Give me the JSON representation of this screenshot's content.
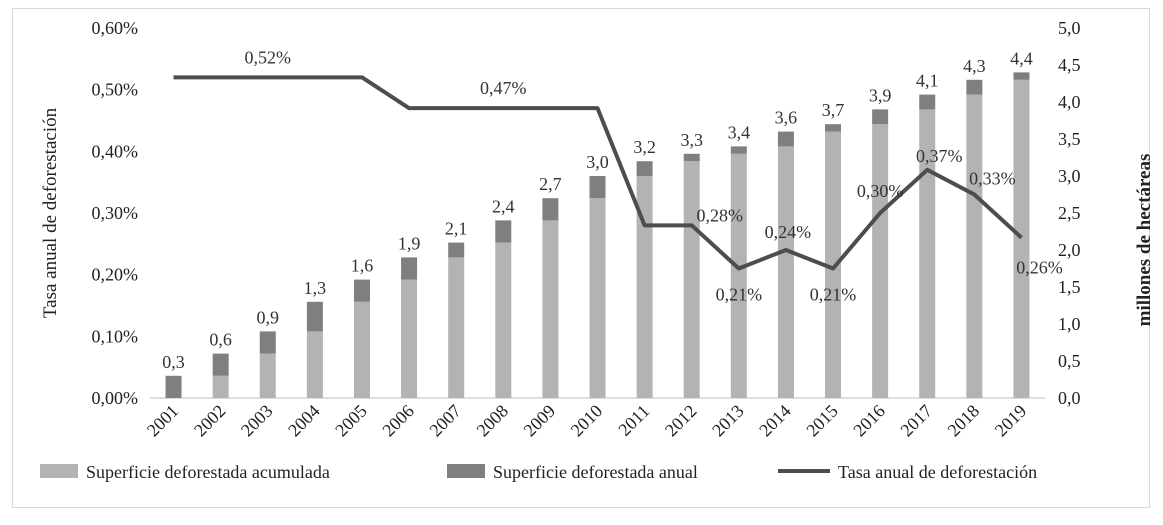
{
  "chart_data": {
    "type": "bar",
    "categories": [
      "2001",
      "2002",
      "2003",
      "2004",
      "2005",
      "2006",
      "2007",
      "2008",
      "2009",
      "2010",
      "2011",
      "2012",
      "2013",
      "2014",
      "2015",
      "2016",
      "2017",
      "2018",
      "2019"
    ],
    "series": [
      {
        "name": "Superficie deforestada acumulada",
        "type": "bar",
        "axis": "right",
        "stack": "total",
        "color": "#b3b3b3",
        "values": [
          0.0,
          0.3,
          0.6,
          0.9,
          1.3,
          1.6,
          1.9,
          2.1,
          2.4,
          2.7,
          3.0,
          3.2,
          3.3,
          3.4,
          3.6,
          3.7,
          3.9,
          4.1,
          4.3
        ]
      },
      {
        "name": "Superficie deforestada anual",
        "type": "bar",
        "axis": "right",
        "stack": "total",
        "color": "#7f7f7f",
        "values": [
          0.3,
          0.3,
          0.3,
          0.4,
          0.3,
          0.3,
          0.2,
          0.3,
          0.3,
          0.3,
          0.2,
          0.1,
          0.1,
          0.2,
          0.1,
          0.2,
          0.2,
          0.2,
          0.1
        ]
      },
      {
        "name": "Tasa anual de deforestación",
        "type": "line",
        "axis": "left",
        "color": "#4d4d4d",
        "values": [
          0.52,
          0.52,
          0.52,
          0.52,
          0.52,
          0.47,
          0.47,
          0.47,
          0.47,
          0.47,
          0.28,
          0.28,
          0.21,
          0.24,
          0.21,
          0.3,
          0.37,
          0.33,
          0.26
        ]
      }
    ],
    "total_labels": [
      "0,3",
      "0,6",
      "0,9",
      "1,3",
      "1,6",
      "1,9",
      "2,1",
      "2,4",
      "2,7",
      "3,0",
      "3,2",
      "3,3",
      "3,4",
      "3,6",
      "3,7",
      "3,9",
      "4,1",
      "4,3",
      "4,4"
    ],
    "line_labels": [
      {
        "index": 2,
        "text": "0,52%"
      },
      {
        "index": 7,
        "text": "0,47%"
      },
      {
        "index": 11,
        "text": "0,28%"
      },
      {
        "index": 12,
        "text": "0,21%"
      },
      {
        "index": 13,
        "text": "0,24%"
      },
      {
        "index": 14,
        "text": "0,21%"
      },
      {
        "index": 15,
        "text": "0,30%"
      },
      {
        "index": 16,
        "text": "0,37%"
      },
      {
        "index": 17,
        "text": "0,33%"
      },
      {
        "index": 18,
        "text": "0,26%"
      }
    ],
    "ylabel_left": "Tasa anual de deforestación",
    "ylabel_right": "millones de hectáreas",
    "ylim_left": [
      0,
      0.6
    ],
    "ylim_right": [
      0,
      5
    ],
    "yticks_left": [
      "0,00%",
      "0,10%",
      "0,20%",
      "0,30%",
      "0,40%",
      "0,50%",
      "0,60%"
    ],
    "yticks_right": [
      "0,0",
      "0,5",
      "1,0",
      "1,5",
      "2,0",
      "2,5",
      "3,0",
      "3,5",
      "4,0",
      "4,5",
      "5,0"
    ],
    "grid": false,
    "legend_position": "bottom"
  }
}
